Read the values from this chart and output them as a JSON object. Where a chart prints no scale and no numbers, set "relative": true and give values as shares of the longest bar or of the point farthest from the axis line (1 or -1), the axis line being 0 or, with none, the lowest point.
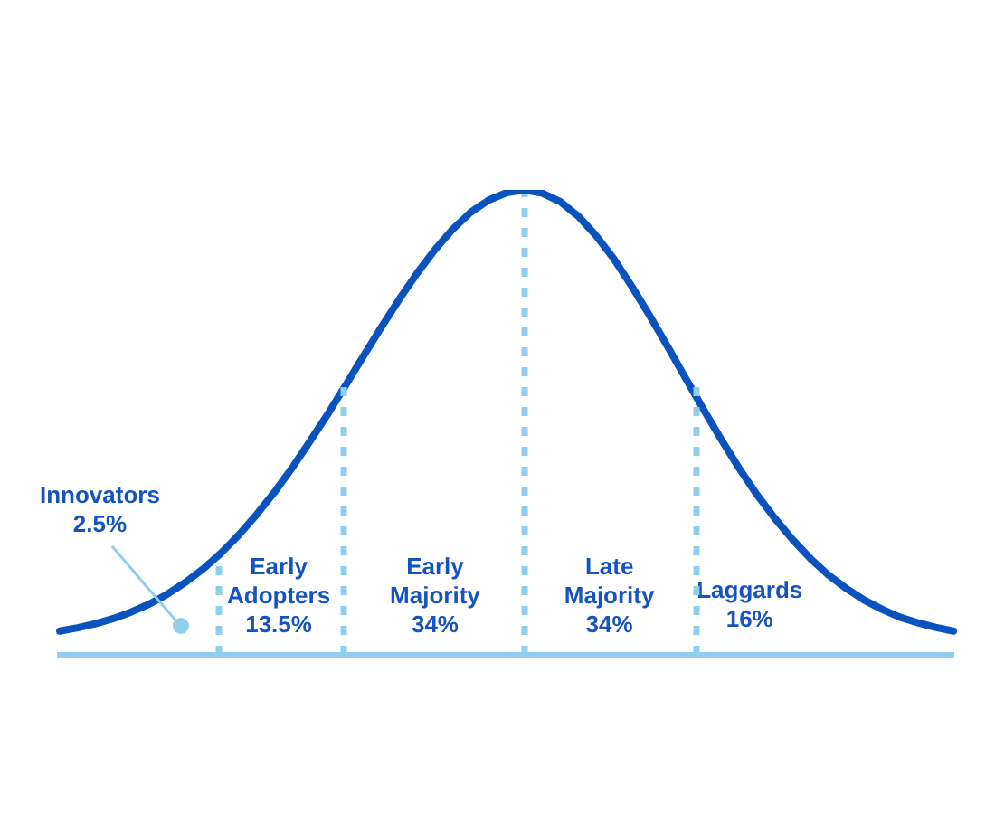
{
  "chart_data": {
    "type": "line",
    "relative": true,
    "legend": false,
    "grid": false,
    "marker": "none",
    "line_style": "solid",
    "categories": [
      null,
      null,
      null,
      null,
      null,
      null,
      null,
      null,
      null,
      null,
      null,
      null,
      null,
      null,
      null,
      null,
      null,
      null,
      null,
      null,
      null,
      null,
      null,
      null,
      null,
      null,
      null,
      null,
      null,
      null,
      null,
      null,
      null,
      null,
      null,
      null,
      null,
      null,
      null,
      null,
      null,
      null,
      null,
      null,
      null,
      null,
      null,
      null,
      null,
      null,
      null
    ],
    "series": [
      {
        "color": "#0a52bd",
        "values": [
          0.051,
          0.058,
          0.067,
          0.078,
          0.092,
          0.109,
          0.13,
          0.155,
          0.184,
          0.218,
          0.257,
          0.301,
          0.349,
          0.402,
          0.459,
          0.518,
          0.58,
          0.643,
          0.705,
          0.765,
          0.821,
          0.872,
          0.916,
          0.952,
          0.978,
          0.994,
          1,
          0.993,
          0.975,
          0.944,
          0.902,
          0.852,
          0.793,
          0.73,
          0.664,
          0.596,
          0.529,
          0.464,
          0.402,
          0.345,
          0.294,
          0.248,
          0.207,
          0.172,
          0.143,
          0.118,
          0.098,
          0.081,
          0.069,
          0.059,
          0.051
        ]
      }
    ],
    "annotations": [
      "Innovators\n2.5%",
      "Early\nAdopters\n13.5%",
      "Early\nMajority\n34%",
      "Late\nMajority\n34%",
      "Laggards\n16%"
    ]
  }
}
